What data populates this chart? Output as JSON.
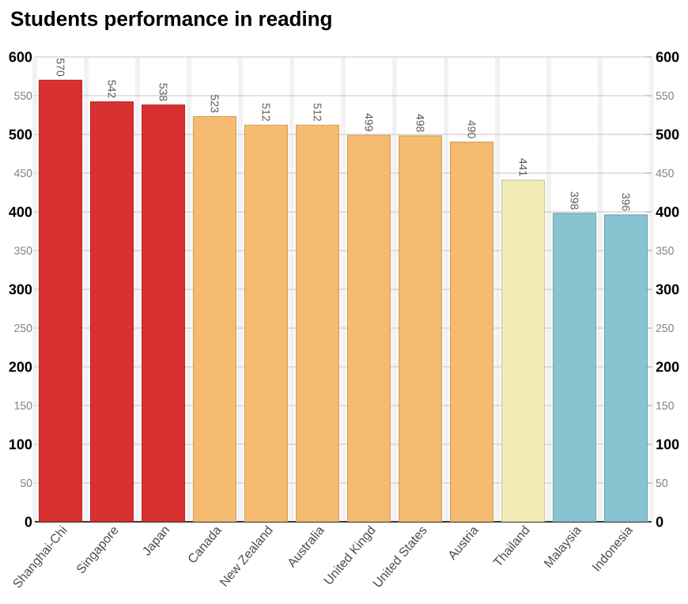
{
  "chart_data": {
    "type": "bar",
    "title": "Students performance in reading",
    "categories": [
      "Shanghai-Chi",
      "Singapore",
      "Japan",
      "Canada",
      "New Zealand",
      "Australia",
      "United Kingd",
      "United States",
      "Austria",
      "Thailand",
      "Malaysia",
      "Indonesia"
    ],
    "values": [
      570,
      542,
      538,
      523,
      512,
      512,
      499,
      498,
      490,
      441,
      398,
      396
    ],
    "colors": [
      "#d93030",
      "#d93030",
      "#d93030",
      "#f5bb70",
      "#f5bb70",
      "#f5bb70",
      "#f5bb70",
      "#f5bb70",
      "#f5bb70",
      "#f1ecb5",
      "#88c3d1",
      "#88c3d1"
    ],
    "ylim": [
      0,
      600
    ],
    "yticks": [
      0,
      50,
      100,
      150,
      200,
      250,
      300,
      350,
      400,
      450,
      500,
      550,
      600
    ],
    "y2lim": [
      0,
      600
    ],
    "y2ticks": [
      0,
      50,
      100,
      150,
      200,
      250,
      300,
      350,
      400,
      450,
      500,
      550,
      600
    ],
    "grid": true,
    "data_labels": true
  }
}
